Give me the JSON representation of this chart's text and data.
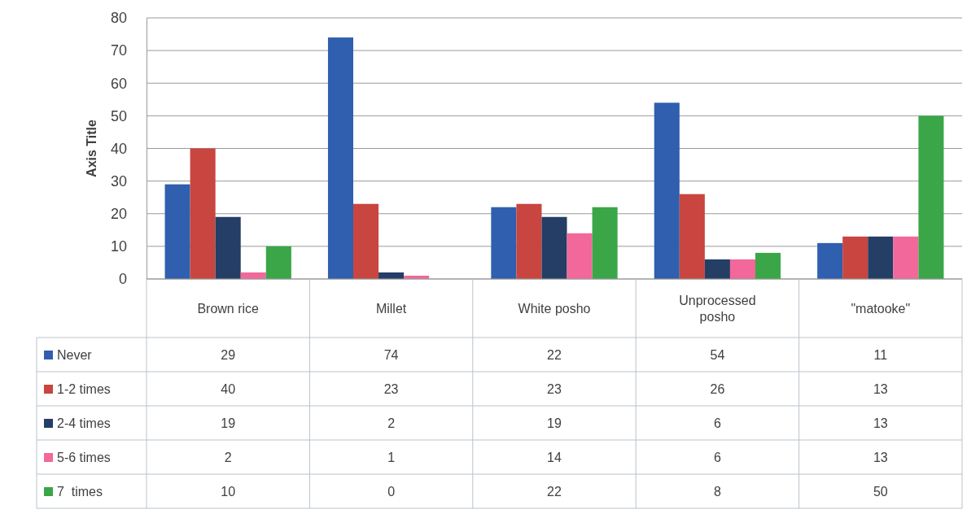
{
  "chart_data": {
    "type": "bar",
    "ylabel": "Axis Title",
    "categories": [
      "Brown rice",
      "Millet",
      "White posho",
      "Unprocessed posho",
      "\"matooke\""
    ],
    "series": [
      {
        "name": "Never",
        "color": "#2f5fae",
        "values": [
          29,
          74,
          22,
          54,
          11
        ]
      },
      {
        "name": "1-2 times",
        "color": "#c9453f",
        "values": [
          40,
          23,
          23,
          26,
          13
        ]
      },
      {
        "name": "2-4 times",
        "color": "#243e66",
        "values": [
          19,
          2,
          19,
          6,
          13
        ]
      },
      {
        "name": "5-6 times",
        "color": "#f2689a",
        "values": [
          2,
          1,
          14,
          6,
          13
        ]
      },
      {
        "name": "7  times",
        "color": "#3aa648",
        "values": [
          10,
          0,
          22,
          8,
          50
        ]
      }
    ],
    "ylim": [
      0,
      80
    ],
    "yticks": [
      0,
      10,
      20,
      30,
      40,
      50,
      60,
      70,
      80
    ],
    "grid": "y",
    "legend": "bottom",
    "data_labels": true
  }
}
